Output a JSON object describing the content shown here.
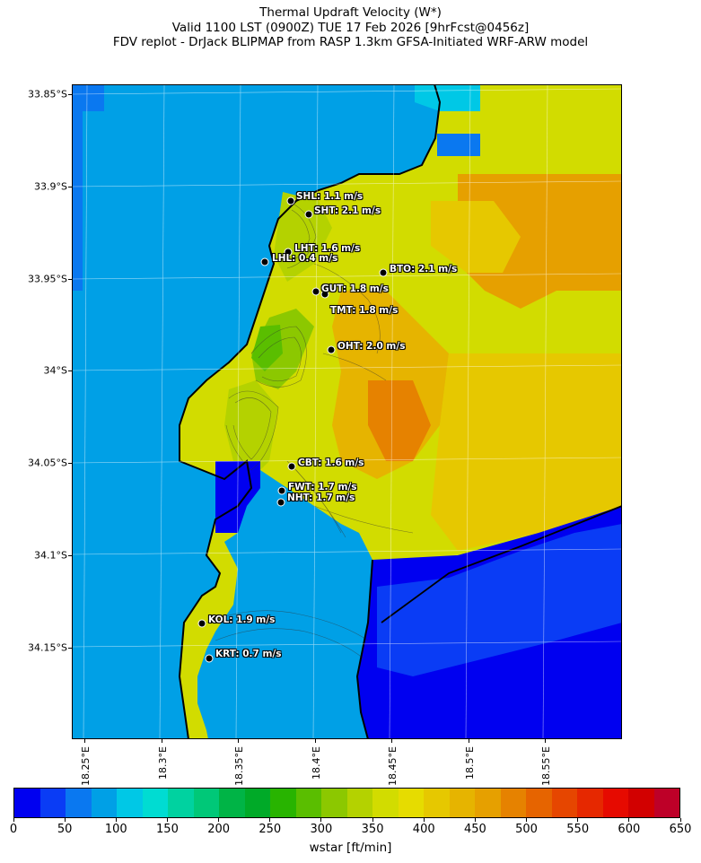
{
  "title": {
    "line1": "Thermal Updraft Velocity (W*)",
    "line2": "Valid 1100 LST (0900Z) TUE 17 Feb 2026 [9hrFcst@0456z]",
    "line3": "FDV replot - DrJack BLIPMAP from RASP 1.3km GFSA-Initiated WRF-ARW model"
  },
  "axes": {
    "lat_labels": [
      "33.85°S",
      "33.9°S",
      "33.95°S",
      "34°S",
      "34.05°S",
      "34.1°S",
      "34.15°S"
    ],
    "lon_labels": [
      "18.25°E",
      "18.3°E",
      "18.35°E",
      "18.4°E",
      "18.45°E",
      "18.5°E",
      "18.55°E"
    ]
  },
  "stations": [
    {
      "code": "SHL",
      "text": "SHL: 1.1 m/s"
    },
    {
      "code": "SHT",
      "text": "SHT: 2.1 m/s"
    },
    {
      "code": "LHT",
      "text": "LHT: 1.6 m/s"
    },
    {
      "code": "LHL",
      "text": "LHL: 0.4 m/s"
    },
    {
      "code": "BTO",
      "text": "BTO: 2.1 m/s"
    },
    {
      "code": "GUT",
      "text": "GUT: 1.8 m/s"
    },
    {
      "code": "TMT",
      "text": "TMT: 1.8 m/s"
    },
    {
      "code": "OHT",
      "text": "OHT: 2.0 m/s"
    },
    {
      "code": "CBT",
      "text": "CBT: 1.6 m/s"
    },
    {
      "code": "FWT",
      "text": "FWT: 1.7 m/s"
    },
    {
      "code": "NHT",
      "text": "NHT: 1.7 m/s"
    },
    {
      "code": "KOL",
      "text": "KOL: 1.9 m/s"
    },
    {
      "code": "KRT",
      "text": "KRT: 0.7 m/s"
    }
  ],
  "colorbar": {
    "label": "wstar [ft/min]",
    "tick_labels": [
      "0",
      "50",
      "100",
      "150",
      "200",
      "250",
      "300",
      "350",
      "400",
      "450",
      "500",
      "550",
      "600",
      "650"
    ],
    "colors": [
      "#0000f0",
      "#0a3cf5",
      "#0a78f0",
      "#00a0e6",
      "#00c8e6",
      "#00dcd2",
      "#00d2a0",
      "#00c878",
      "#00b446",
      "#00aa28",
      "#28b400",
      "#5abe00",
      "#8cc800",
      "#b4d200",
      "#d2dc00",
      "#e6dc00",
      "#e6c800",
      "#e6b400",
      "#e6a000",
      "#e68200",
      "#e66400",
      "#e64600",
      "#e62800",
      "#e60a00",
      "#d20000",
      "#be0028"
    ]
  }
}
